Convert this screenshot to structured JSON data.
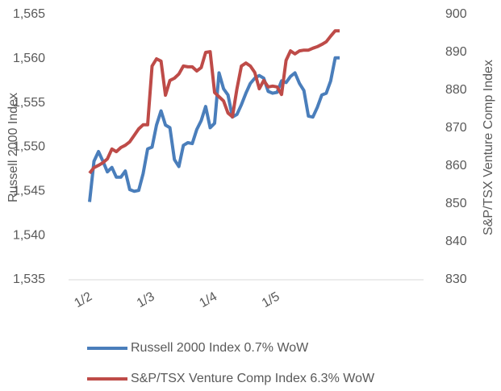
{
  "chart_data": {
    "type": "line",
    "y_label": "Russell 2000 Index",
    "y2_label": "S&P/TSX Venture Comp Index",
    "categories": [
      "1/2",
      null,
      null,
      null,
      null,
      null,
      null,
      null,
      null,
      null,
      null,
      null,
      null,
      null,
      "1/3",
      null,
      null,
      null,
      null,
      null,
      null,
      null,
      null,
      null,
      null,
      null,
      null,
      null,
      "1/4",
      null,
      null,
      null,
      null,
      null,
      null,
      null,
      null,
      null,
      null,
      null,
      null,
      null,
      "1/5",
      null,
      null,
      null,
      null,
      null,
      null,
      null,
      null,
      null,
      null,
      null,
      null,
      null,
      null
    ],
    "ylim": [
      1535,
      1565
    ],
    "yticks": [
      {
        "value": 1535,
        "label": "1,535"
      },
      {
        "value": 1540,
        "label": "1,540"
      },
      {
        "value": 1545,
        "label": "1,545"
      },
      {
        "value": 1550,
        "label": "1,550"
      },
      {
        "value": 1555,
        "label": "1,555"
      },
      {
        "value": 1560,
        "label": "1,560"
      },
      {
        "value": 1565,
        "label": "1,565"
      }
    ],
    "y2lim": [
      830,
      900
    ],
    "y2ticks": [
      830,
      840,
      850,
      860,
      870,
      880,
      890,
      900
    ],
    "grid": false,
    "legend": "bottom",
    "series": [
      {
        "name": "Russell 2000 Index 0.7% WoW",
        "color": "#4a7ebb",
        "axis": "y",
        "values": [
          1543.8,
          1548.4,
          1549.5,
          1548.4,
          1547.2,
          1547.7,
          1546.6,
          1546.6,
          1547.3,
          1545.2,
          1545.0,
          1545.1,
          1547.0,
          1549.8,
          1550.0,
          1552.5,
          1554.1,
          1552.5,
          1552.2,
          1548.6,
          1547.8,
          1550.2,
          1550.5,
          1550.4,
          1552.0,
          1553.0,
          1554.6,
          1552.2,
          1552.7,
          1558.4,
          1556.6,
          1555.9,
          1553.4,
          1553.7,
          1554.8,
          1556.1,
          1557.2,
          1557.8,
          1558.1,
          1557.8,
          1556.3,
          1556.1,
          1556.2,
          1557.5,
          1557.3,
          1558.0,
          1558.4,
          1557.2,
          1556.4,
          1553.5,
          1553.4,
          1554.5,
          1555.9,
          1556.1,
          1557.5,
          1560.1,
          1560.1
        ]
      },
      {
        "name": "S&P/TSX Venture Comp Index 6.3% WoW",
        "color": "#be4b48",
        "axis": "y2",
        "values": [
          858.1,
          859.6,
          860.2,
          860.9,
          861.9,
          864.5,
          863.8,
          864.9,
          865.5,
          866.4,
          868.1,
          869.8,
          870.9,
          870.9,
          886.4,
          888.3,
          887.7,
          878.7,
          882.6,
          883.2,
          884.3,
          886.4,
          886.2,
          886.2,
          885.1,
          886.0,
          890.0,
          890.2,
          879.4,
          878.3,
          877.2,
          874.0,
          873.0,
          880.4,
          886.4,
          887.2,
          886.4,
          884.7,
          880.4,
          882.6,
          880.9,
          881.1,
          880.9,
          878.9,
          887.9,
          890.4,
          889.6,
          890.4,
          890.6,
          890.6,
          891.1,
          891.5,
          892.1,
          892.8,
          894.3,
          895.7,
          895.7
        ]
      }
    ]
  }
}
